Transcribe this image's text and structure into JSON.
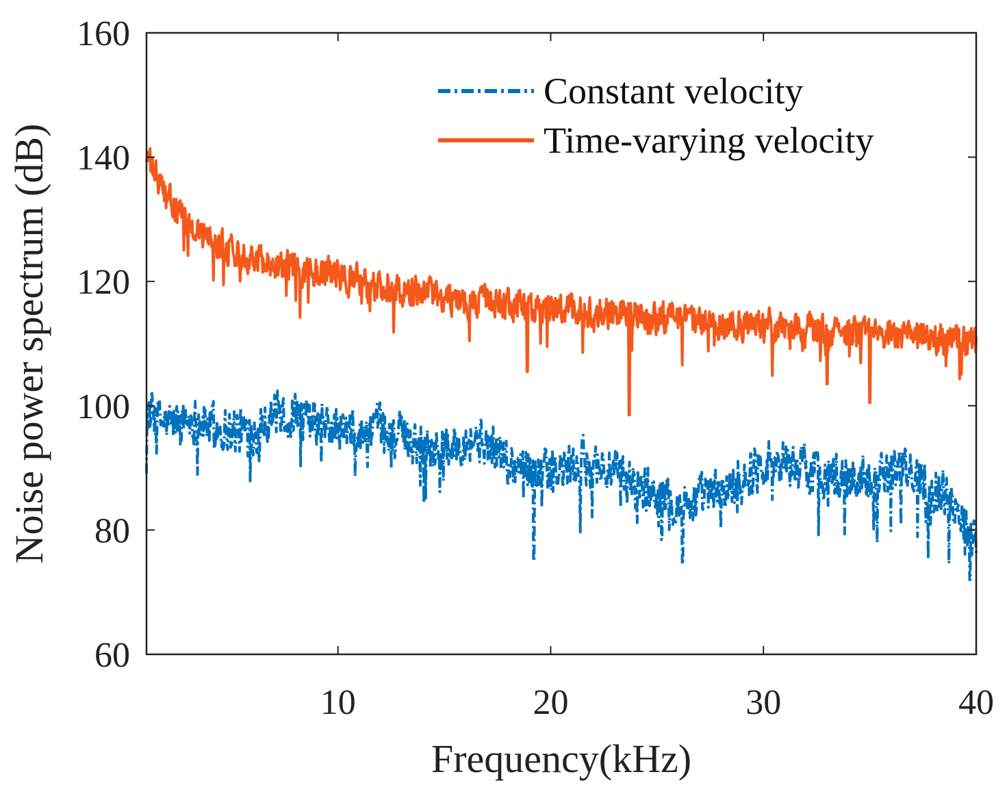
{
  "chart_data": {
    "type": "line",
    "xlabel": "Frequency(kHz)",
    "ylabel": "Noise power spectrum (dB)",
    "xlim": [
      1,
      40
    ],
    "ylim": [
      60,
      160
    ],
    "xticks": [
      10,
      20,
      30,
      40
    ],
    "yticks": [
      60,
      80,
      100,
      120,
      140,
      160
    ],
    "grid": false,
    "legend_position": "top-right",
    "series": [
      {
        "name": "Constant velocity",
        "color": "#0072BD",
        "line_style": "dash-dot",
        "x": [
          1,
          2,
          3,
          4,
          5,
          6,
          7,
          8,
          9,
          10,
          11,
          12,
          13,
          14,
          15,
          16,
          17,
          18,
          19,
          20,
          21,
          22,
          23,
          24,
          25,
          26,
          27,
          28,
          29,
          30,
          31,
          32,
          33,
          34,
          35,
          36,
          37,
          38,
          39,
          40
        ],
        "y": [
          99,
          97,
          98,
          97,
          96,
          96,
          99,
          98,
          97,
          96,
          95,
          96,
          95,
          94,
          93,
          95,
          94,
          91,
          90,
          89,
          90,
          91,
          89,
          87,
          86,
          84,
          85,
          86,
          88,
          91,
          91,
          90,
          89,
          88,
          89,
          90,
          89,
          87,
          84,
          79
        ],
        "noise_amplitude": 5,
        "dips": [
          {
            "x": 19.2,
            "y": 75
          },
          {
            "x": 26.2,
            "y": 74.5
          },
          {
            "x": 39.7,
            "y": 72
          }
        ]
      },
      {
        "name": "Time-varying velocity",
        "color": "#F4591B",
        "line_style": "solid",
        "x": [
          1,
          2,
          3,
          4,
          5,
          6,
          7,
          8,
          9,
          10,
          11,
          12,
          13,
          14,
          15,
          16,
          17,
          18,
          19,
          20,
          21,
          22,
          23,
          24,
          25,
          26,
          27,
          28,
          29,
          30,
          31,
          32,
          33,
          34,
          35,
          36,
          37,
          38,
          39,
          40
        ],
        "y": [
          140,
          133,
          129,
          127,
          125,
          124,
          123,
          122,
          121.5,
          121,
          120,
          119,
          118.5,
          118,
          117.5,
          117,
          116.5,
          116,
          115.8,
          115.5,
          115,
          115,
          114.8,
          114.5,
          114,
          113.8,
          113.5,
          113.2,
          113,
          112.8,
          112.5,
          112.3,
          112,
          111.8,
          111.5,
          111.3,
          111,
          110.8,
          110.5,
          110
        ],
        "noise_amplitude": 3.5,
        "dips": [
          {
            "x": 18.9,
            "y": 105.5
          },
          {
            "x": 23.7,
            "y": 98.5
          },
          {
            "x": 35.0,
            "y": 100.5
          },
          {
            "x": 33.0,
            "y": 103.5
          }
        ]
      }
    ]
  }
}
